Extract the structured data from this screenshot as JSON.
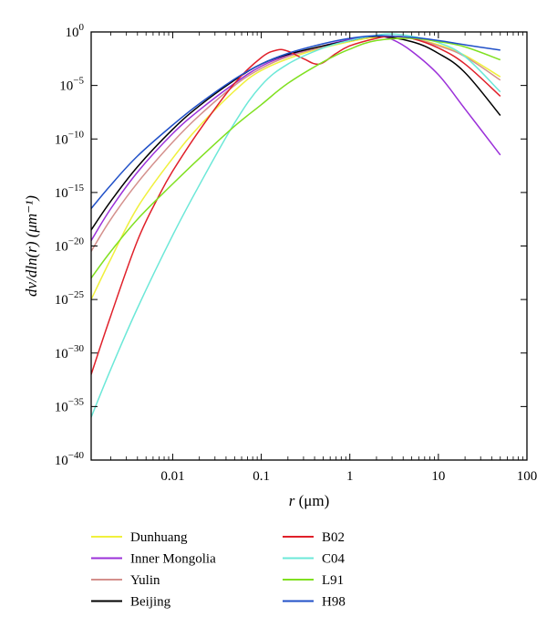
{
  "chart_data": {
    "type": "line",
    "xscale": "log",
    "yscale": "log",
    "xlim": [
      0.0012,
      100
    ],
    "ylim": [
      1e-40,
      1
    ],
    "grid": false,
    "legend_position": "bottom",
    "xlabel": {
      "italic": "r",
      "rest": " (μm)"
    },
    "ylabel": "dv/dln(r) (μm⁻¹)",
    "x_ticks": [
      {
        "value": 0.01,
        "label": "0.01"
      },
      {
        "value": 0.1,
        "label": "0.1"
      },
      {
        "value": 1,
        "label": "1"
      },
      {
        "value": 10,
        "label": "10"
      },
      {
        "value": 100,
        "label": "100"
      }
    ],
    "y_ticks": [
      {
        "exp": 0,
        "base": "10",
        "sup": "0"
      },
      {
        "exp": -5,
        "base": "10",
        "sup": "−5"
      },
      {
        "exp": -10,
        "base": "10",
        "sup": "−10"
      },
      {
        "exp": -15,
        "base": "10",
        "sup": "−15"
      },
      {
        "exp": -20,
        "base": "10",
        "sup": "−20"
      },
      {
        "exp": -25,
        "base": "10",
        "sup": "−25"
      },
      {
        "exp": -30,
        "base": "10",
        "sup": "−30"
      },
      {
        "exp": -35,
        "base": "10",
        "sup": "−35"
      },
      {
        "exp": -40,
        "base": "10",
        "sup": "−40"
      }
    ],
    "series": [
      {
        "name": "Dunhuang",
        "color": "#f0f03c",
        "x": [
          0.0012,
          0.002,
          0.004,
          0.01,
          0.02,
          0.05,
          0.1,
          0.3,
          1,
          2,
          3,
          5,
          10,
          20,
          50
        ],
        "y_log10": [
          -25,
          -21.2,
          -16.4,
          -11.8,
          -8.8,
          -5.5,
          -3.6,
          -2.0,
          -0.9,
          -0.5,
          -0.5,
          -0.6,
          -1.2,
          -2.2,
          -4.2
        ]
      },
      {
        "name": "Inner Mongolia",
        "color": "#9b30d9",
        "x": [
          0.0012,
          0.002,
          0.004,
          0.01,
          0.02,
          0.05,
          0.1,
          0.2,
          0.5,
          1,
          2,
          3,
          5,
          10,
          20,
          50
        ],
        "y_log10": [
          -19.5,
          -16.5,
          -13.1,
          -9.5,
          -7.3,
          -4.8,
          -3.2,
          -2.2,
          -1.3,
          -0.7,
          -0.4,
          -0.7,
          -1.8,
          -4.0,
          -7.2,
          -11.5
        ]
      },
      {
        "name": "Yulin",
        "color": "#d4908c",
        "x": [
          0.0012,
          0.002,
          0.004,
          0.01,
          0.02,
          0.05,
          0.1,
          0.2,
          0.5,
          1,
          2,
          5,
          10,
          20,
          50
        ],
        "y_log10": [
          -20.5,
          -17.5,
          -14.1,
          -10.3,
          -7.8,
          -5.0,
          -3.4,
          -2.3,
          -1.4,
          -0.8,
          -0.4,
          -0.6,
          -1.3,
          -2.3,
          -4.5
        ]
      },
      {
        "name": "Beijing",
        "color": "#000000",
        "x": [
          0.0012,
          0.002,
          0.004,
          0.01,
          0.02,
          0.05,
          0.1,
          0.2,
          0.5,
          1,
          2,
          5,
          10,
          20,
          50
        ],
        "y_log10": [
          -18.5,
          -15.8,
          -12.6,
          -9.1,
          -6.9,
          -4.5,
          -3.0,
          -2.1,
          -1.3,
          -0.8,
          -0.4,
          -0.9,
          -2.0,
          -3.8,
          -7.8
        ]
      },
      {
        "name": "B02",
        "color": "#e0202a",
        "x": [
          0.0012,
          0.002,
          0.004,
          0.007,
          0.01,
          0.02,
          0.05,
          0.1,
          0.15,
          0.2,
          0.3,
          0.45,
          0.7,
          1,
          2,
          3,
          5,
          10,
          20,
          50
        ],
        "y_log10": [
          -32,
          -26.5,
          -19.5,
          -15.3,
          -13,
          -9.2,
          -4.8,
          -2.4,
          -1.7,
          -1.8,
          -2.5,
          -3.0,
          -2.0,
          -1.3,
          -0.6,
          -0.4,
          -0.6,
          -1.5,
          -3.0,
          -6.0
        ]
      },
      {
        "name": "C04",
        "color": "#6ce8d8",
        "x": [
          0.0012,
          0.002,
          0.004,
          0.01,
          0.02,
          0.05,
          0.1,
          0.2,
          0.5,
          1,
          2,
          3,
          5,
          10,
          20,
          50
        ],
        "y_log10": [
          -36,
          -31.5,
          -25.8,
          -19.0,
          -14.3,
          -8.5,
          -5.0,
          -3.0,
          -1.5,
          -0.8,
          -0.3,
          -0.2,
          -0.4,
          -1.0,
          -2.3,
          -5.6
        ]
      },
      {
        "name": "L91",
        "color": "#80e020",
        "x": [
          0.0012,
          0.002,
          0.004,
          0.01,
          0.02,
          0.05,
          0.1,
          0.2,
          0.5,
          1,
          2,
          5,
          10,
          20,
          50
        ],
        "y_log10": [
          -23,
          -20.5,
          -17.5,
          -14.2,
          -11.8,
          -8.8,
          -6.8,
          -4.8,
          -2.8,
          -1.6,
          -0.8,
          -0.6,
          -0.9,
          -1.4,
          -2.6
        ]
      },
      {
        "name": "H98",
        "color": "#2050c8",
        "x": [
          0.0012,
          0.002,
          0.004,
          0.01,
          0.02,
          0.05,
          0.1,
          0.2,
          0.5,
          1,
          2,
          5,
          10,
          20,
          50
        ],
        "y_log10": [
          -16.5,
          -14.3,
          -11.6,
          -8.7,
          -6.7,
          -4.4,
          -3.0,
          -2.0,
          -1.1,
          -0.6,
          -0.35,
          -0.5,
          -0.8,
          -1.2,
          -1.7
        ]
      }
    ]
  }
}
